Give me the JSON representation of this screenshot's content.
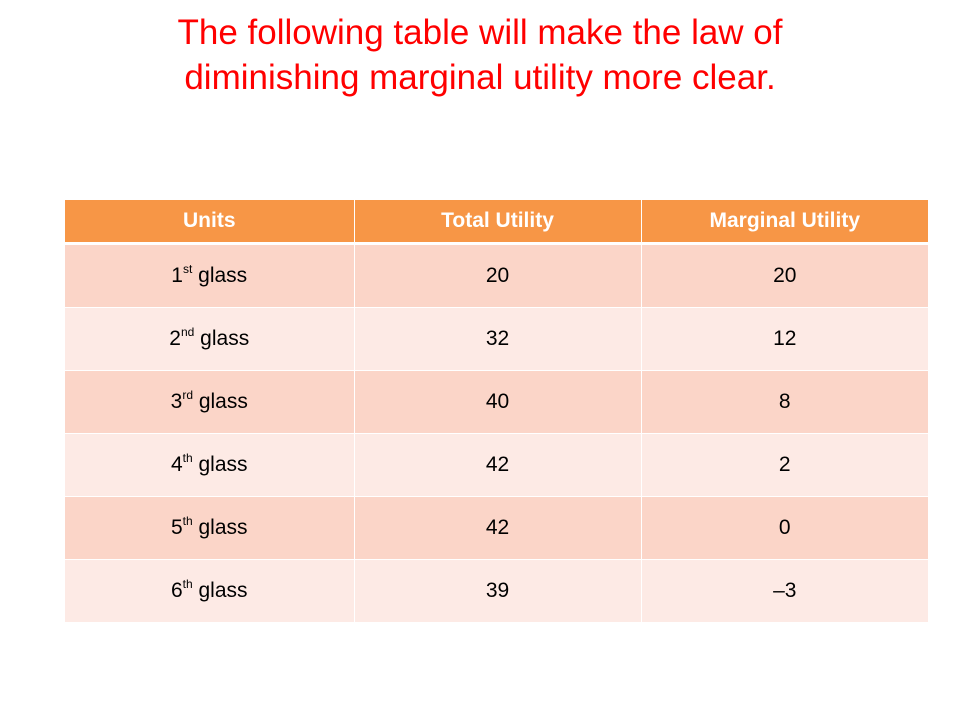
{
  "title": {
    "line1": "The following table will make the law of",
    "line2": "diminishing marginal utility more clear."
  },
  "table": {
    "headers": [
      "Units",
      "Total Utility",
      "Marginal Utility"
    ],
    "rows": [
      {
        "unit_number": "1",
        "unit_suffix": "st",
        "unit_word": " glass",
        "total": "20",
        "marginal": "20"
      },
      {
        "unit_number": "2",
        "unit_suffix": "nd",
        "unit_word": " glass",
        "total": "32",
        "marginal": "12"
      },
      {
        "unit_number": "3",
        "unit_suffix": "rd",
        "unit_word": " glass",
        "total": "40",
        "marginal": "8"
      },
      {
        "unit_number": "4",
        "unit_suffix": "th",
        "unit_word": " glass",
        "total": "42",
        "marginal": "2"
      },
      {
        "unit_number": "5",
        "unit_suffix": "th",
        "unit_word": " glass",
        "total": "42",
        "marginal": "0"
      },
      {
        "unit_number": "6",
        "unit_suffix": "th",
        "unit_word": " glass",
        "total": "39",
        "marginal": "–3"
      }
    ]
  },
  "colors": {
    "title": "#ff0000",
    "header_bg": "#f79646",
    "row_odd_bg": "#fbd5c8",
    "row_even_bg": "#fdeae5"
  }
}
